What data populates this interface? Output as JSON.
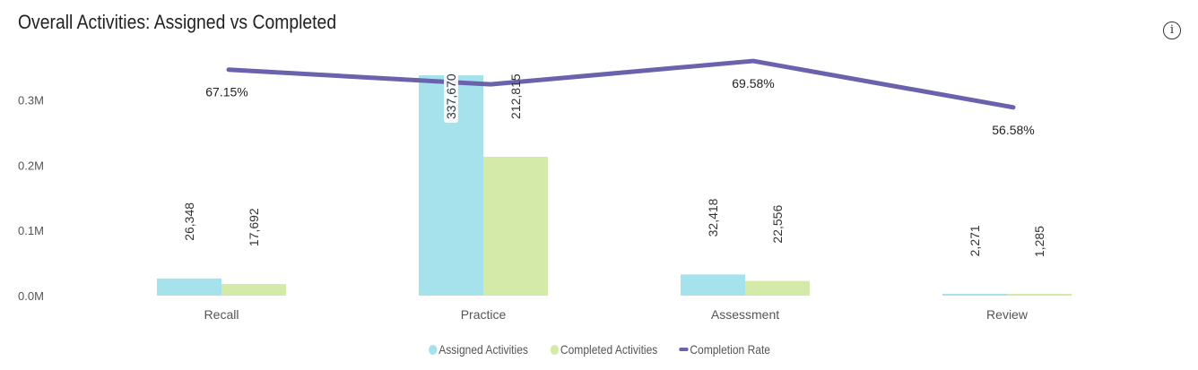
{
  "header": {
    "title": "Overall Activities: Assigned vs Completed",
    "info_symbol": "i"
  },
  "colors": {
    "assigned": "#a5e2ec",
    "completed": "#d3eaa9",
    "rate": "#6b62ad",
    "axis_text": "#555555"
  },
  "legend": {
    "items": [
      {
        "label": "Assigned Activities",
        "color": "#a5e2ec",
        "shape": "dot"
      },
      {
        "label": "Completed Activities",
        "color": "#d3eaa9",
        "shape": "dot"
      },
      {
        "label": "Completion Rate",
        "color": "#6b62ad",
        "shape": "line"
      }
    ]
  },
  "chart_data": {
    "type": "bar",
    "categories": [
      "Recall",
      "Practice",
      "Assessment",
      "Review"
    ],
    "series": [
      {
        "name": "Assigned Activities",
        "values": [
          26348,
          337670,
          32418,
          2271
        ],
        "labels": [
          "26,348",
          "337,670",
          "32,418",
          "2,271"
        ]
      },
      {
        "name": "Completed Activities",
        "values": [
          17692,
          212815,
          22556,
          1285
        ],
        "labels": [
          "17,692",
          "212,815",
          "22,556",
          "1,285"
        ]
      }
    ],
    "line_series": {
      "name": "Completion Rate",
      "values": [
        67.15,
        63.03,
        69.58,
        56.58
      ],
      "labels": [
        "67.15%",
        "",
        "69.58%",
        "56.58%"
      ],
      "axis": "secondary, hidden"
    },
    "y_axis": {
      "ticks": [
        0,
        100000,
        200000,
        300000
      ],
      "tick_labels": [
        "0.0M",
        "0.1M",
        "0.2M",
        "0.3M"
      ],
      "ylim": [
        0,
        350000
      ]
    },
    "grid": false,
    "legend_position": "bottom-center"
  }
}
